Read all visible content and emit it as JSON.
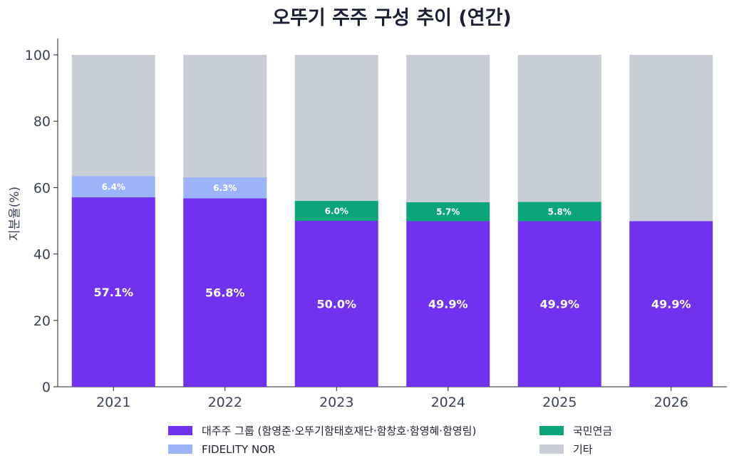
{
  "chart_data": {
    "type": "bar",
    "stacked": true,
    "title": "오뚜기 주주 구성 추이 (연간)",
    "ylabel": "지분율(%)",
    "xlabel": "",
    "ylim": [
      0,
      100
    ],
    "yticks": [
      0,
      20,
      40,
      60,
      80,
      100
    ],
    "grid": false,
    "legend_position": "bottom",
    "categories": [
      "2021",
      "2022",
      "2023",
      "2024",
      "2025",
      "2026"
    ],
    "series": [
      {
        "name": "대주주 그룹 (함영준·오뚜기함태호재단·함창호·함영혜·함영림)",
        "color": "#7132f0",
        "values": [
          57.1,
          56.8,
          50.0,
          49.9,
          49.9,
          49.9
        ],
        "labels": [
          "57.1%",
          "56.8%",
          "50.0%",
          "49.9%",
          "49.9%",
          "49.9%"
        ]
      },
      {
        "name": "FIDELITY NOR",
        "color": "#9db3fa",
        "values": [
          6.4,
          6.3,
          0,
          0,
          0,
          0
        ],
        "labels": [
          "6.4%",
          "6.3%",
          "",
          "",
          "",
          ""
        ]
      },
      {
        "name": "국민연금",
        "color": "#0aa67a",
        "values": [
          0,
          0,
          6.0,
          5.7,
          5.8,
          0
        ],
        "labels": [
          "",
          "",
          "6.0%",
          "5.7%",
          "5.8%",
          ""
        ]
      },
      {
        "name": "기타",
        "color": "#c9cdd6",
        "values": [
          36.5,
          36.9,
          44.0,
          44.4,
          44.3,
          50.1
        ],
        "labels": [
          "",
          "",
          "",
          "",
          "",
          ""
        ]
      }
    ]
  }
}
